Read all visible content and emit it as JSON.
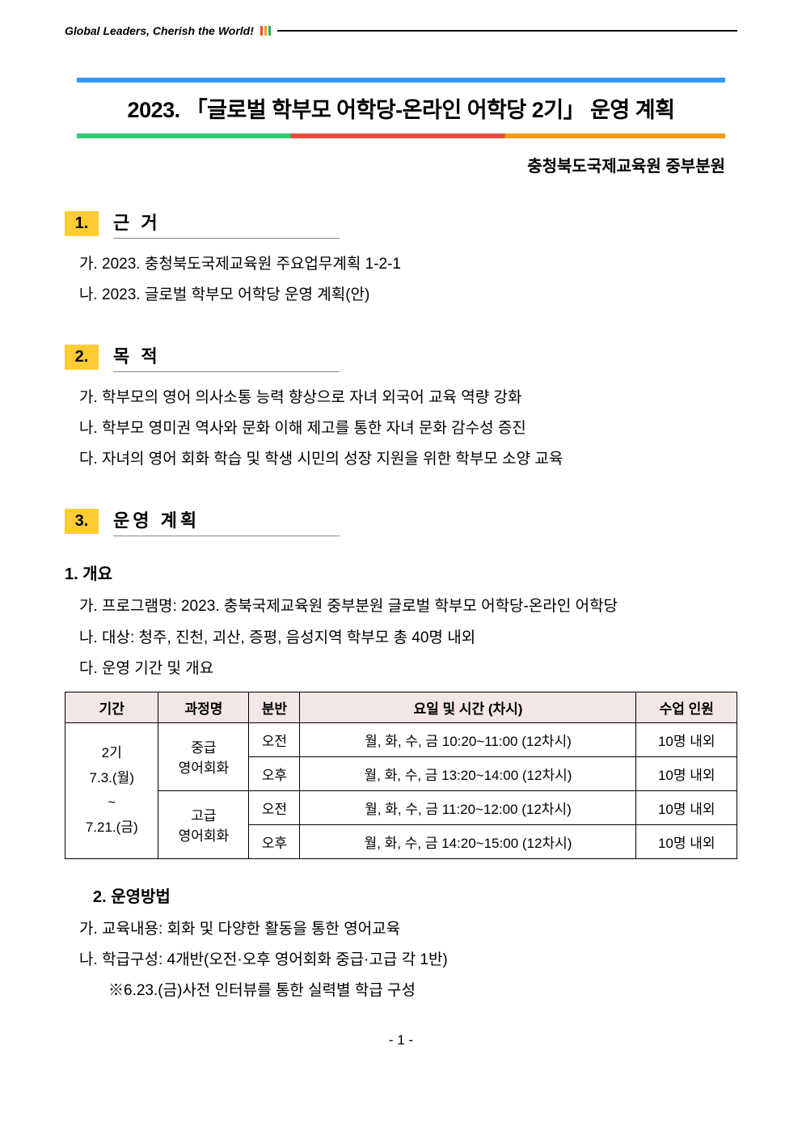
{
  "header": {
    "slogan": "Global Leaders, Cherish the World!"
  },
  "title": {
    "main": "2023. 「글로벌 학부모 어학당-온라인 어학당 2기」 운영 계획",
    "subtitle": "충청북도국제교육원 중부분원"
  },
  "colors": {
    "highlight_bg": "#ffcc33",
    "top_bar": "#3399ff",
    "gradient_stops": [
      "#2ecc71",
      "#e74c3c",
      "#f39c12"
    ],
    "table_header_bg": "#f5e6e6"
  },
  "sections": {
    "s1": {
      "number": "1.",
      "title": "근 거",
      "items": [
        "가. 2023. 충청북도국제교육원 주요업무계획 1-2-1",
        "나. 2023. 글로벌 학부모 어학당 운영 계획(안)"
      ]
    },
    "s2": {
      "number": "2.",
      "title": "목 적",
      "items": [
        "가. 학부모의 영어 의사소통 능력 향상으로 자녀 외국어 교육 역량 강화",
        "나. 학부모 영미권 역사와 문화 이해 제고를 통한 자녀 문화 감수성 증진",
        "다. 자녀의 영어 회화 학습 및 학생 시민의 성장 지원을 위한 학부모 소양 교육"
      ]
    },
    "s3": {
      "number": "3.",
      "title": "운영 계획",
      "sub1": {
        "heading": "1. 개요",
        "items": [
          "가. 프로그램명: 2023. 충북국제교육원 중부분원 글로벌 학부모 어학당-온라인 어학당",
          "나. 대상: 청주, 진천, 괴산, 증평, 음성지역 학부모 총 40명 내외",
          "다. 운영 기간 및 개요"
        ]
      },
      "table": {
        "headers": [
          "기간",
          "과정명",
          "분반",
          "요일 및 시간 (차시)",
          "수업 인원"
        ],
        "period_lines": [
          "2기",
          "7.3.(월)",
          "~",
          "7.21.(금)"
        ],
        "rows": [
          {
            "course": "중급\n영어회화",
            "slot": "오전",
            "time": "월, 화, 수, 금 10:20~11:00 (12차시)",
            "cap": "10명 내외"
          },
          {
            "course": "",
            "slot": "오후",
            "time": "월, 화, 수, 금 13:20~14:00 (12차시)",
            "cap": "10명 내외"
          },
          {
            "course": "고급\n영어회화",
            "slot": "오전",
            "time": "월, 화, 수, 금 11:20~12:00 (12차시)",
            "cap": "10명 내외"
          },
          {
            "course": "",
            "slot": "오후",
            "time": "월, 화, 수, 금 14:20~15:00 (12차시)",
            "cap": "10명 내외"
          }
        ]
      },
      "sub2": {
        "heading": "2. 운영방법",
        "items": [
          "가. 교육내용: 회화 및 다양한 활동을 통한 영어교육",
          "나. 학급구성: 4개반(오전·오후 영어회화 중급·고급 각 1반)"
        ],
        "note": "※6.23.(금)사전 인터뷰를 통한 실력별 학급 구성"
      }
    }
  },
  "page_number": "- 1 -"
}
